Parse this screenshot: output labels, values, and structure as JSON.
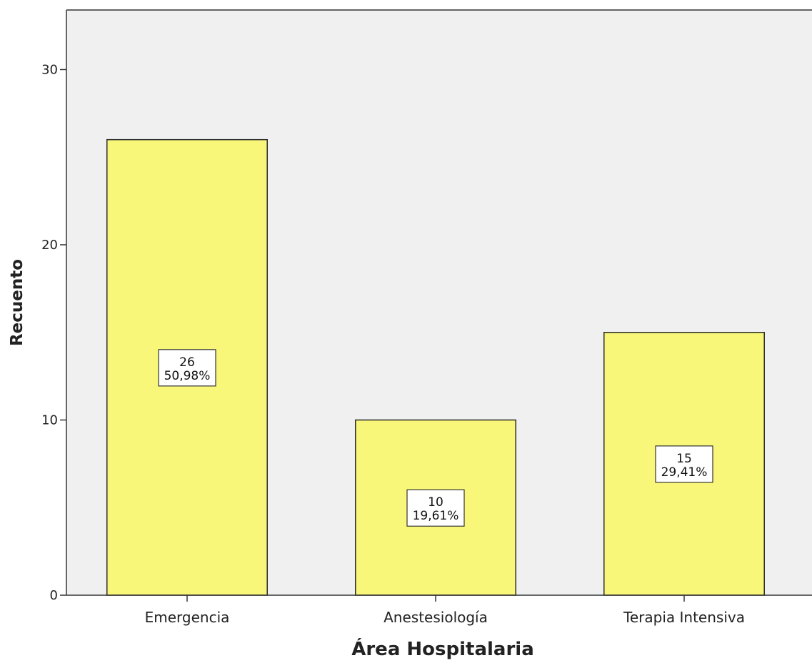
{
  "chart_data": {
    "type": "bar",
    "categories": [
      "Emergencia",
      "Anestesiología",
      "Terapia Intensiva"
    ],
    "values": [
      26,
      10,
      15
    ],
    "percent_labels": [
      "50,98%",
      "19,61%",
      "29,41%"
    ],
    "xlabel": "Área Hospitalaria",
    "ylabel": "Recuento",
    "ylim": [
      0,
      33.4
    ],
    "yticks": [
      0,
      10,
      20,
      30
    ],
    "grid": false,
    "legend": "none",
    "colors": {
      "bar_fill": "#f9f779",
      "bar_stroke": "#2b2b2b",
      "plot_background": "#f0f0f0",
      "axis": "#333333",
      "label_box": "#ffffff"
    }
  }
}
